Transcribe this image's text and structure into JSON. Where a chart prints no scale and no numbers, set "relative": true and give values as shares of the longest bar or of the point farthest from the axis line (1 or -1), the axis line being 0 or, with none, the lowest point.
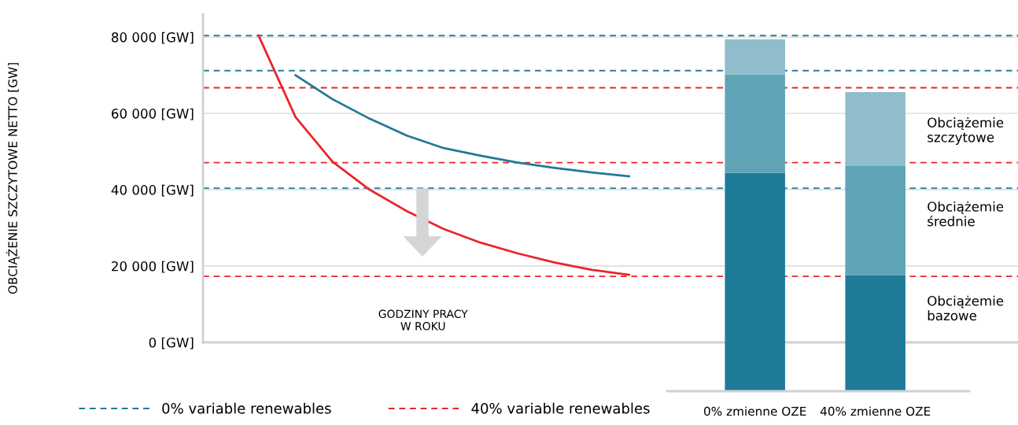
{
  "chart_data": [
    {
      "type": "line",
      "ylabel": "OBCIĄŻENIE SZCZYTOWE NETTO [GW]",
      "xlabel": "GODZINY PRACY\nW ROKU",
      "categories": [
        null,
        null,
        null,
        null,
        null,
        null,
        null,
        null,
        null,
        null,
        null,
        null,
        null,
        null,
        null,
        null,
        null,
        null,
        null,
        null,
        null,
        null
      ],
      "series": [
        {
          "name": "0% variable renewables",
          "color": "#1f7a96",
          "values": [
            null,
            null,
            70000,
            63700,
            58600,
            54200,
            50900,
            48900,
            47100,
            45700,
            44500,
            43500,
            null,
            null,
            null,
            null,
            null,
            null,
            null,
            null,
            null,
            null
          ]
        },
        {
          "name": "40% variable renewables",
          "color": "#e8262a",
          "values": [
            null,
            80400,
            59000,
            47300,
            40000,
            34400,
            29700,
            26100,
            23300,
            20900,
            19000,
            17700,
            null,
            null,
            null,
            null,
            null,
            null,
            null,
            null,
            null,
            null
          ]
        }
      ],
      "ylim": [
        0,
        86000
      ],
      "yticks": [
        {
          "value": 0,
          "label": "0 [GW]"
        },
        {
          "value": 20000,
          "label": "20 000 [GW]"
        },
        {
          "value": 40000,
          "label": "40 000 [GW]"
        },
        {
          "value": 60000,
          "label": "60 000 [GW]"
        },
        {
          "value": 80000,
          "label": "80 000 [GW]"
        }
      ],
      "ref_lines": [
        {
          "axis": "y",
          "value": 80400,
          "color": "#2a7f99",
          "line_style": "dashed"
        },
        {
          "axis": "y",
          "value": 71200,
          "color": "#2a7f99",
          "line_style": "dashed"
        },
        {
          "axis": "y",
          "value": 40400,
          "color": "#2a7f99",
          "line_style": "dashed"
        },
        {
          "axis": "y",
          "value": 66700,
          "color": "#e8262a",
          "line_style": "dashed"
        },
        {
          "axis": "y",
          "value": 47100,
          "color": "#e8262a",
          "line_style": "dashed"
        },
        {
          "axis": "y",
          "value": 17300,
          "color": "#e8262a",
          "line_style": "dashed"
        }
      ],
      "grid": "y",
      "legend": "bottom",
      "tick_labels": "y",
      "line_style": "solid",
      "marker": "none"
    },
    {
      "type": "bar",
      "stacked": true,
      "relative": true,
      "categories": [
        "0% zmienne OZE",
        "40% zmienne OZE"
      ],
      "series": [
        {
          "color": "#1e7b98",
          "values": [
            0.62,
            0.33
          ]
        },
        {
          "color": "#5fa3b6",
          "values": [
            0.28,
            0.31
          ]
        },
        {
          "color": "#8fbdcb",
          "values": [
            0.1,
            0.21
          ]
        }
      ],
      "tick_labels": "x",
      "annotations": [
        "Obciążemie\nszczytowe",
        "Obciążemie\nśrednie",
        "Obciążemie\nbazowe"
      ]
    }
  ]
}
